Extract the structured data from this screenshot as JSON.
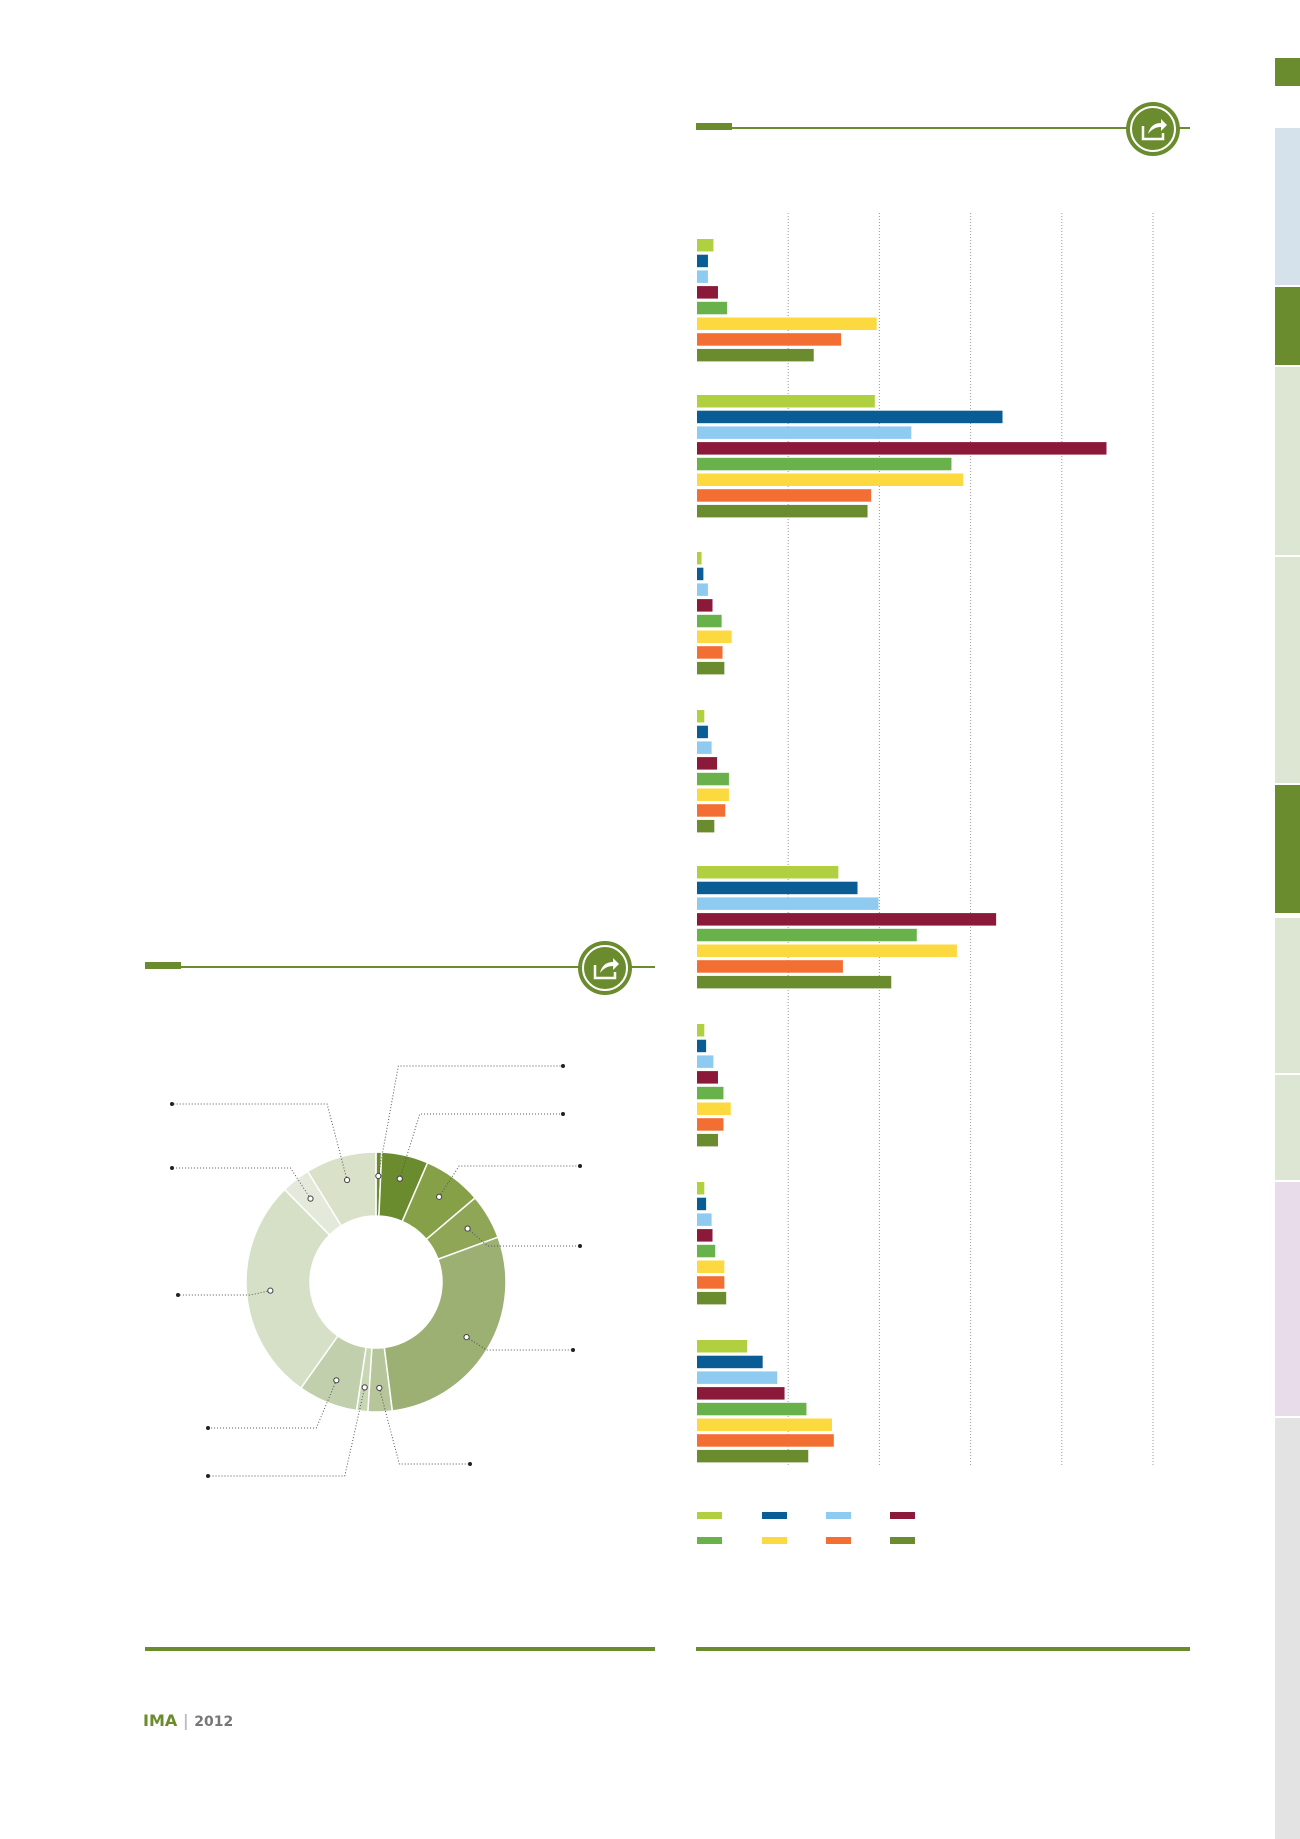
{
  "brand": {
    "logo": "IMA",
    "year": "2012"
  },
  "colors": {
    "accent": "#6b8c2e",
    "series": [
      "#b0d03f",
      "#0a5c95",
      "#8fcbf0",
      "#8b1a3a",
      "#69b14a",
      "#fcd93e",
      "#f26e32",
      "#6b8c2e"
    ]
  },
  "sidebar": {
    "tabs": [
      {
        "color": "#6b8c2e"
      },
      {
        "color": "#d5e2ec"
      },
      {
        "color": "#6b8c2e"
      },
      {
        "color": "#dde6d2"
      },
      {
        "color": "#dde6d2"
      },
      {
        "color": "#6b8c2e"
      },
      {
        "color": "#dde6d2"
      },
      {
        "color": "#dde6d2"
      },
      {
        "color": "#e8dbea"
      },
      {
        "color": "#e3e3e3"
      }
    ]
  },
  "chart_data": [
    {
      "type": "bar",
      "orientation": "horizontal",
      "title": "",
      "groups": 8,
      "series": [
        {
          "values": [
            0.18,
            1.95,
            0.05,
            0.08,
            1.55,
            0.08,
            0.08,
            0.55
          ]
        },
        {
          "values": [
            0.12,
            3.35,
            0.07,
            0.12,
            1.76,
            0.1,
            0.1,
            0.72
          ]
        },
        {
          "values": [
            0.12,
            2.35,
            0.12,
            0.16,
            1.99,
            0.18,
            0.16,
            0.88
          ]
        },
        {
          "values": [
            0.23,
            4.49,
            0.17,
            0.22,
            3.28,
            0.23,
            0.17,
            0.96
          ]
        },
        {
          "values": [
            0.33,
            2.79,
            0.27,
            0.35,
            2.41,
            0.29,
            0.2,
            1.2
          ]
        },
        {
          "values": [
            1.97,
            2.92,
            0.38,
            0.35,
            2.85,
            0.37,
            0.3,
            1.48
          ]
        },
        {
          "values": [
            1.58,
            1.91,
            0.28,
            0.31,
            1.6,
            0.29,
            0.3,
            1.5
          ]
        },
        {
          "values": [
            1.28,
            1.87,
            0.3,
            0.19,
            2.13,
            0.23,
            0.32,
            1.22
          ]
        }
      ],
      "xlim": [
        0,
        5
      ],
      "grid": true,
      "legend": "bottom"
    },
    {
      "type": "pie",
      "style": "donut",
      "slices": [
        {
          "value": 0.7,
          "color": "#6b8c2e"
        },
        {
          "value": 5.8,
          "color": "#6b8c2e"
        },
        {
          "value": 7.3,
          "color": "#86a048"
        },
        {
          "value": 5.6,
          "color": "#8ea656"
        },
        {
          "value": 28.6,
          "color": "#9bb072"
        },
        {
          "value": 3.0,
          "color": "#b6c69a"
        },
        {
          "value": 1.4,
          "color": "#c9d6b4"
        },
        {
          "value": 7.4,
          "color": "#c2cfac"
        },
        {
          "value": 27.8,
          "color": "#d6e0c6"
        },
        {
          "value": 3.6,
          "color": "#e4eadb"
        },
        {
          "value": 8.8,
          "color": "#d9e1c9"
        }
      ]
    }
  ]
}
